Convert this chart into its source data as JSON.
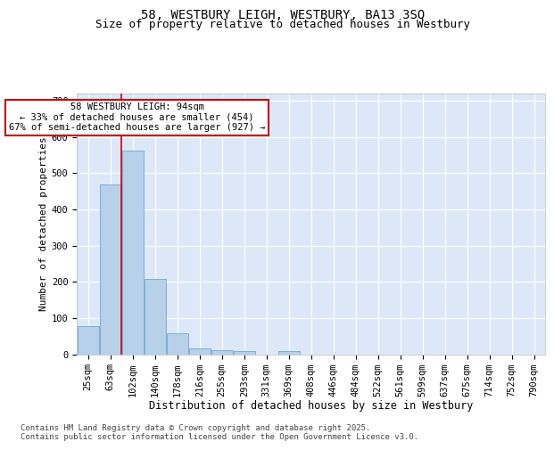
{
  "title": "58, WESTBURY LEIGH, WESTBURY, BA13 3SQ",
  "subtitle": "Size of property relative to detached houses in Westbury",
  "xlabel": "Distribution of detached houses by size in Westbury",
  "ylabel": "Number of detached properties",
  "categories": [
    "25sqm",
    "63sqm",
    "102sqm",
    "140sqm",
    "178sqm",
    "216sqm",
    "255sqm",
    "293sqm",
    "331sqm",
    "369sqm",
    "408sqm",
    "446sqm",
    "484sqm",
    "522sqm",
    "561sqm",
    "599sqm",
    "637sqm",
    "675sqm",
    "714sqm",
    "752sqm",
    "790sqm"
  ],
  "values": [
    78,
    468,
    562,
    208,
    57,
    15,
    10,
    8,
    0,
    8,
    0,
    0,
    0,
    0,
    0,
    0,
    0,
    0,
    0,
    0,
    0
  ],
  "bar_color": "#b8d0ea",
  "bar_edge_color": "#6fa8d4",
  "background_color": "#dce8f8",
  "grid_color": "#ffffff",
  "vline_x": 1.5,
  "vline_color": "#cc0000",
  "annotation_text": "58 WESTBURY LEIGH: 94sqm\n← 33% of detached houses are smaller (454)\n67% of semi-detached houses are larger (927) →",
  "annotation_box_color": "#cc0000",
  "ylim": [
    0,
    720
  ],
  "yticks": [
    0,
    100,
    200,
    300,
    400,
    500,
    600,
    700
  ],
  "footer": "Contains HM Land Registry data © Crown copyright and database right 2025.\nContains public sector information licensed under the Open Government Licence v3.0.",
  "title_fontsize": 10,
  "subtitle_fontsize": 9,
  "xlabel_fontsize": 8.5,
  "ylabel_fontsize": 8,
  "tick_fontsize": 7.5,
  "annotation_fontsize": 7.5,
  "footer_fontsize": 6.5
}
